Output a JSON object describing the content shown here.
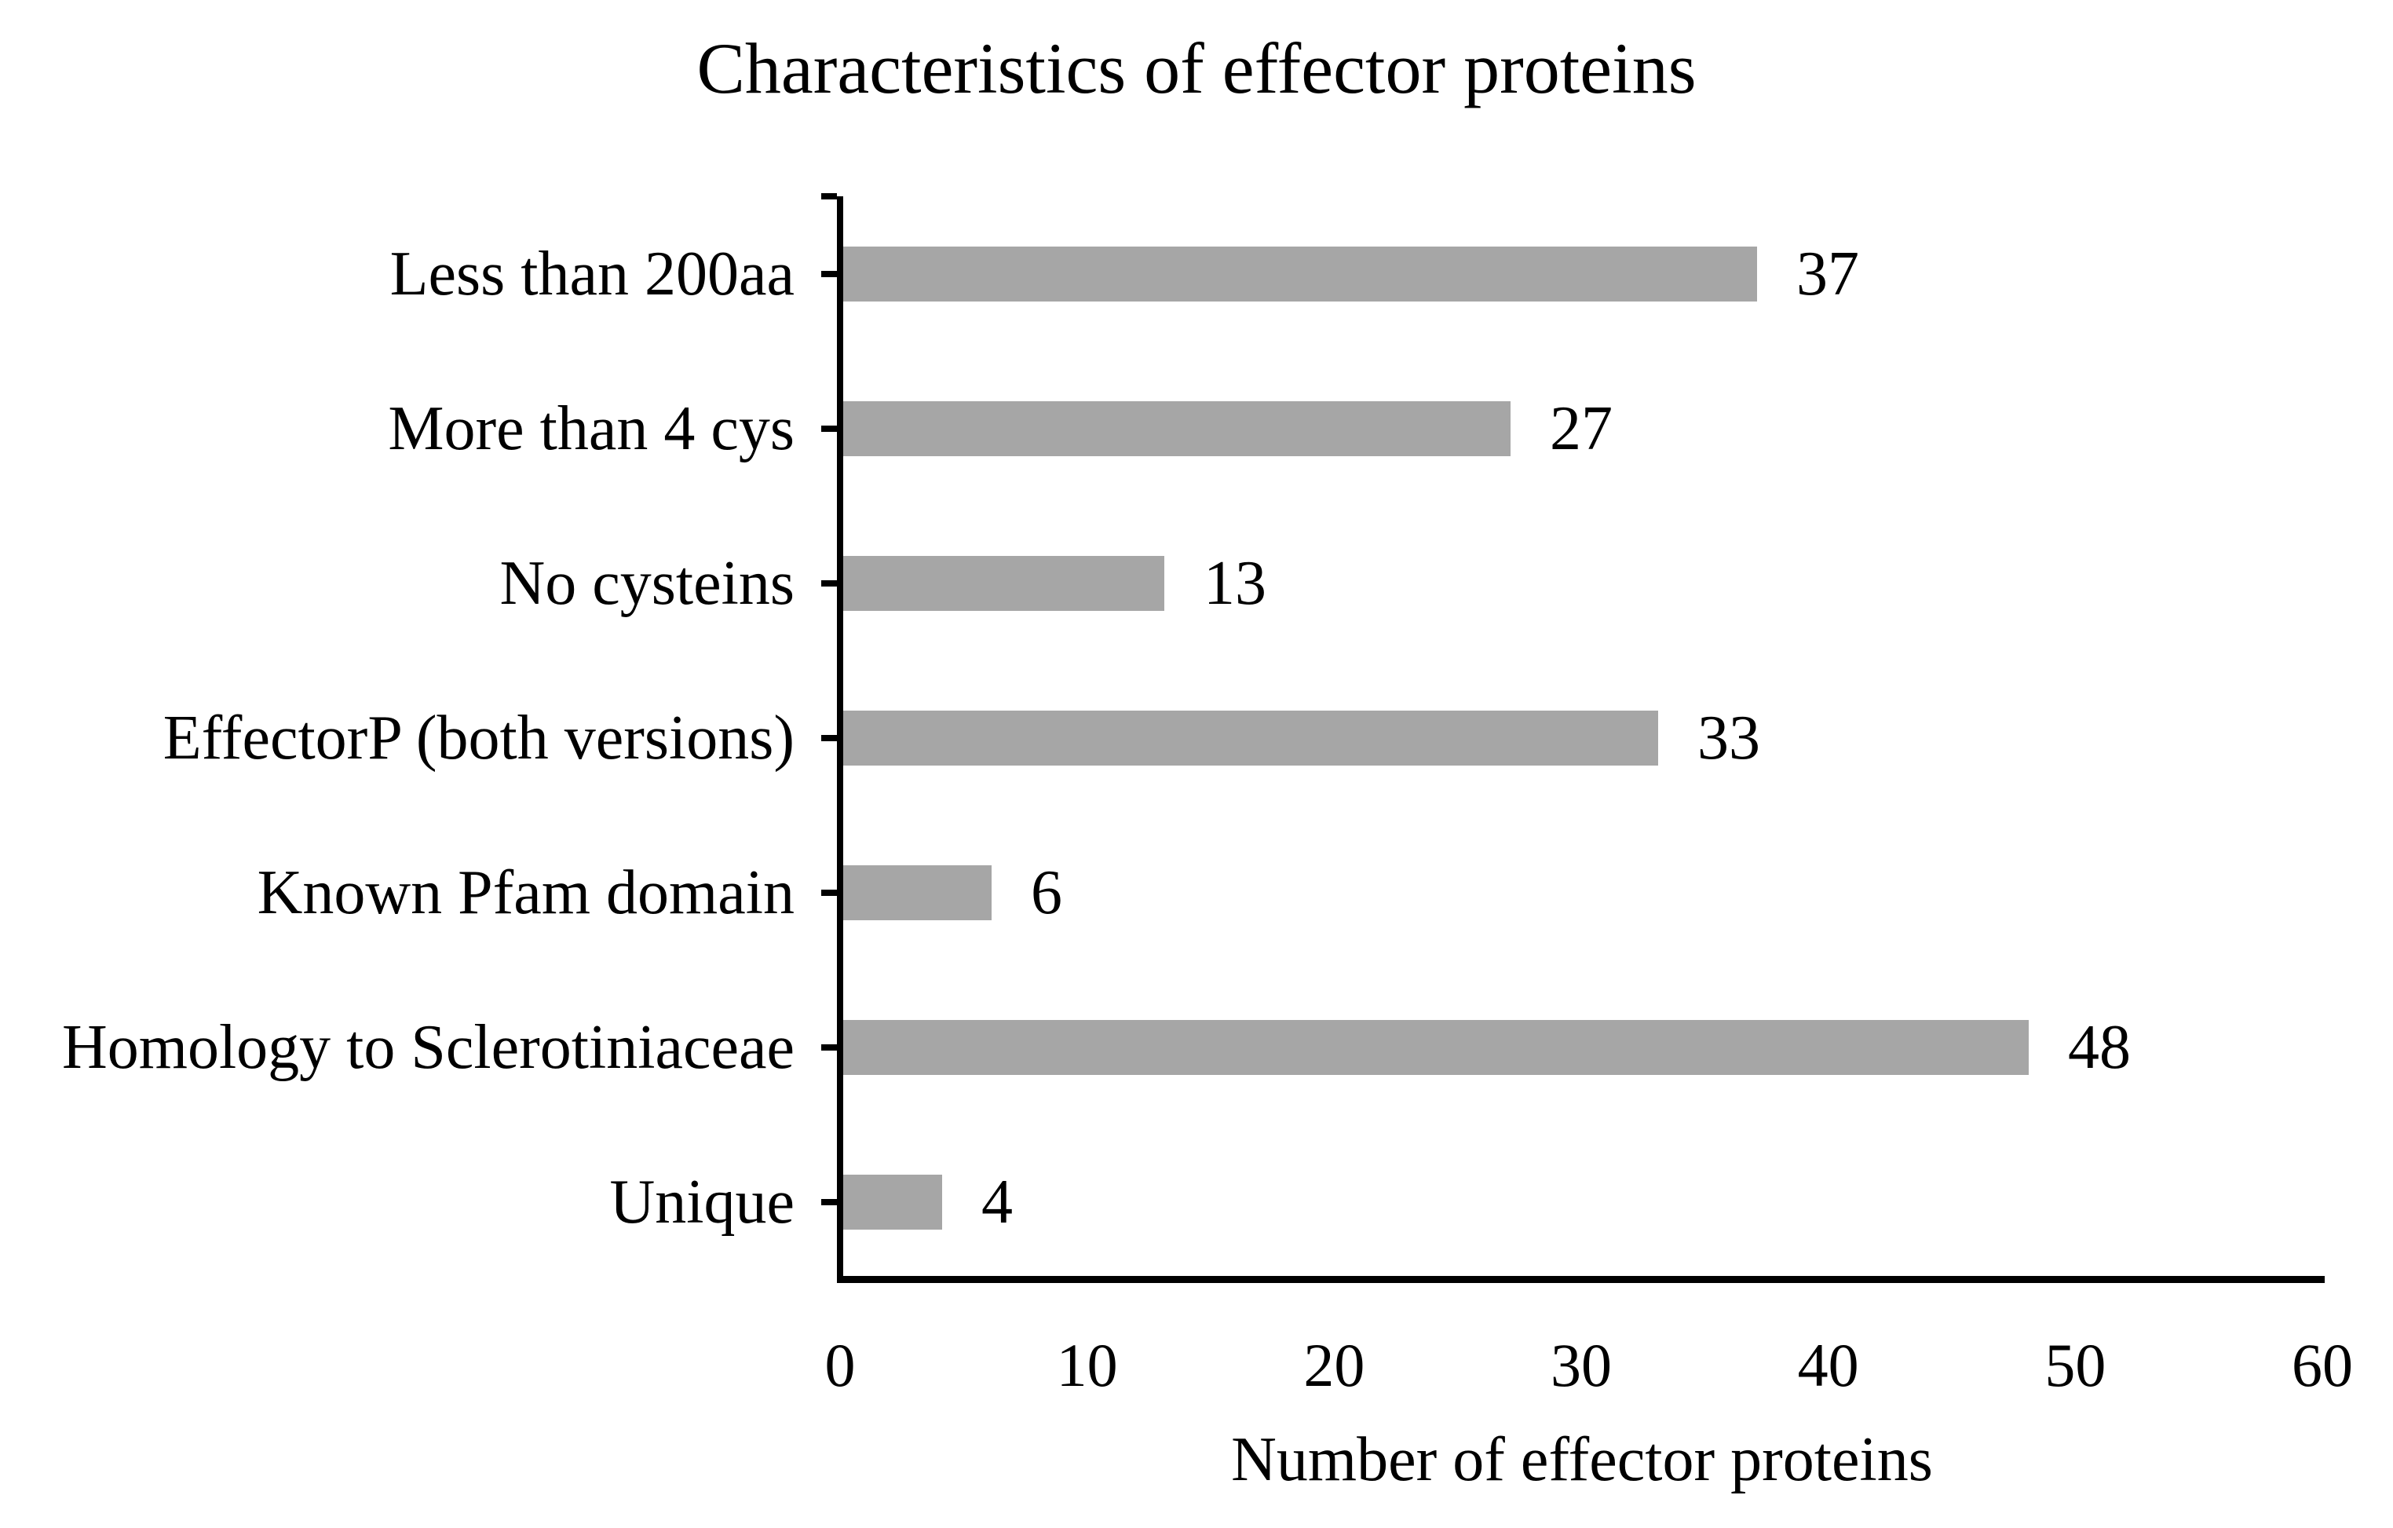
{
  "chart_data": {
    "type": "bar",
    "orientation": "horizontal",
    "title": "Characteristics of effector proteins",
    "xlabel": "Number of effector proteins",
    "ylabel": "",
    "categories": [
      "Less than 200aa",
      "More than 4 cys",
      "No cysteins",
      "EffectorP (both versions)",
      "Known Pfam domain",
      "Homology to Sclerotiniaceae",
      "Unique"
    ],
    "values": [
      37,
      27,
      13,
      33,
      6,
      48,
      4
    ],
    "data_labels": [
      "37",
      "27",
      "13",
      "33",
      "6",
      "48",
      "4"
    ],
    "xlim": [
      0,
      60
    ],
    "x_ticks": [
      0,
      10,
      20,
      30,
      40,
      50,
      60
    ],
    "grid": "off",
    "legend": "none",
    "bar_color": "#a6a6a6",
    "axis_color": "#000000",
    "text_color": "#000000",
    "background_color": "#ffffff"
  }
}
